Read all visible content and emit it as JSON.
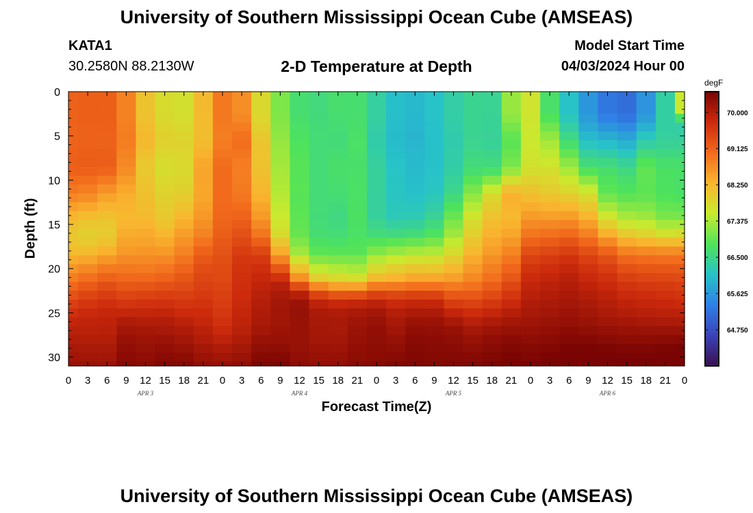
{
  "header": {
    "title": "University of Southern Mississippi Ocean Cube (AMSEAS)",
    "station": "KATA1",
    "coordinates": "30.2580N  88.2130W",
    "subtitle": "2-D Temperature at Depth",
    "model_start_label": "Model Start Time",
    "model_start_value": "04/03/2024 Hour 00"
  },
  "footer": {
    "title": "University of Southern Mississippi Ocean Cube (AMSEAS)"
  },
  "chart_data": {
    "type": "heatmap",
    "title": "2-D Temperature at Depth",
    "xlabel": "Forecast Time(Z)",
    "ylabel": "Depth (ft)",
    "colorbar_unit": "degF",
    "x_hours": [
      0,
      96
    ],
    "y_depth_ft": [
      0,
      31
    ],
    "y_inverted": true,
    "x_tick_labels": [
      "0",
      "3",
      "6",
      "9",
      "12",
      "15",
      "18",
      "21",
      "0",
      "3",
      "6",
      "9",
      "12",
      "15",
      "18",
      "21",
      "0",
      "3",
      "6",
      "9",
      "12",
      "15",
      "18",
      "21",
      "0",
      "3",
      "6",
      "9",
      "12",
      "15",
      "18",
      "21",
      "0"
    ],
    "date_labels": [
      {
        "label": "APR 3",
        "hour": 12
      },
      {
        "label": "APR 4",
        "hour": 36
      },
      {
        "label": "APR 5",
        "hour": 60
      },
      {
        "label": "APR 6",
        "hour": 84
      }
    ],
    "y_ticks": [
      0,
      5,
      10,
      15,
      20,
      25,
      30
    ],
    "colorbar": {
      "min": 63.875,
      "max": 70.5,
      "tick_values": [
        70.0,
        69.125,
        68.25,
        67.375,
        66.5,
        65.625,
        64.75
      ],
      "tick_labels": [
        "70.000",
        "69.125",
        "68.250",
        "67.375",
        "66.500",
        "65.625",
        "64.750"
      ],
      "colors": [
        "#3b0f4f",
        "#3a43b8",
        "#2f7fe6",
        "#27c3c8",
        "#4fe35a",
        "#c9ea2e",
        "#f9b52f",
        "#f26a1c",
        "#cc2a0c",
        "#7a0403"
      ]
    },
    "depth_levels_ft": [
      0,
      1,
      2,
      3,
      4,
      5,
      6,
      7,
      8,
      9,
      10,
      11,
      12,
      13,
      14,
      15,
      16,
      17,
      18,
      19,
      20,
      21,
      22,
      23,
      24,
      25,
      26,
      27,
      28,
      29,
      30,
      31
    ],
    "time_hours": [
      0,
      3,
      6,
      9,
      12,
      15,
      18,
      21,
      24,
      27,
      30,
      33,
      36,
      39,
      42,
      45,
      48,
      51,
      54,
      57,
      60,
      63,
      66,
      69,
      72,
      75,
      78,
      81,
      84,
      87,
      90,
      93,
      96
    ],
    "values_degF": [
      [
        69.12,
        69.15,
        69.16,
        68.79,
        68.11,
        67.77,
        67.71,
        68.22,
        68.89,
        68.67,
        67.81,
        67.1,
        66.67,
        66.59,
        66.69,
        66.68,
        66.36,
        66.04,
        65.98,
        66.08,
        66.32,
        66.46,
        66.44,
        67.26,
        67.64,
        66.72,
        66.09,
        65.6,
        65.25,
        65.14,
        65.57,
        66.33,
        67.57
      ],
      [
        69.12,
        69.15,
        69.16,
        68.79,
        68.11,
        67.77,
        67.71,
        68.22,
        68.89,
        68.67,
        67.81,
        67.1,
        66.67,
        66.59,
        66.69,
        66.68,
        66.36,
        66.04,
        65.98,
        66.08,
        66.32,
        66.46,
        66.44,
        67.26,
        67.64,
        66.72,
        66.09,
        65.6,
        65.25,
        65.14,
        65.57,
        66.33,
        67.57
      ],
      [
        69.12,
        69.15,
        69.16,
        68.79,
        68.11,
        67.77,
        67.71,
        68.22,
        68.89,
        68.67,
        67.81,
        67.1,
        66.67,
        66.59,
        66.69,
        66.68,
        66.36,
        66.04,
        65.98,
        66.08,
        66.32,
        66.46,
        66.44,
        67.26,
        67.64,
        66.72,
        66.09,
        65.6,
        65.25,
        65.14,
        65.57,
        66.33,
        67.57
      ],
      [
        69.12,
        69.15,
        69.15,
        68.8,
        68.14,
        67.8,
        67.74,
        68.21,
        68.88,
        68.73,
        67.84,
        67.13,
        66.7,
        66.6,
        66.67,
        66.69,
        66.35,
        66.03,
        65.96,
        66.08,
        66.31,
        66.46,
        66.43,
        67.19,
        67.62,
        66.82,
        66.17,
        65.67,
        65.37,
        65.25,
        65.67,
        66.33,
        66.73
      ],
      [
        69.11,
        69.13,
        69.14,
        68.82,
        68.19,
        67.86,
        67.8,
        68.2,
        68.86,
        68.85,
        67.92,
        67.17,
        66.74,
        66.62,
        66.65,
        66.71,
        66.32,
        66.02,
        65.95,
        66.07,
        66.29,
        66.46,
        66.42,
        67.06,
        67.59,
        67.02,
        66.33,
        65.8,
        65.6,
        65.48,
        65.89,
        66.33,
        66.32
      ],
      [
        69.1,
        69.12,
        69.12,
        68.84,
        68.23,
        67.91,
        67.86,
        68.19,
        68.84,
        68.95,
        68.01,
        67.22,
        66.77,
        66.63,
        66.62,
        66.73,
        66.29,
        66.01,
        65.93,
        66.07,
        66.27,
        66.45,
        66.41,
        66.94,
        67.58,
        67.22,
        66.51,
        65.96,
        65.83,
        65.71,
        66.13,
        66.37,
        66.35
      ],
      [
        69.11,
        69.13,
        69.12,
        68.83,
        68.22,
        67.9,
        67.87,
        68.22,
        68.86,
        68.98,
        68.08,
        67.26,
        66.8,
        66.63,
        66.62,
        66.74,
        66.29,
        66.02,
        65.94,
        66.07,
        66.27,
        66.47,
        66.42,
        66.9,
        67.59,
        67.38,
        66.72,
        66.15,
        66.06,
        65.93,
        66.36,
        66.43,
        66.43
      ],
      [
        69.13,
        69.16,
        69.15,
        68.78,
        68.14,
        67.83,
        67.84,
        68.32,
        68.92,
        68.92,
        68.1,
        67.29,
        66.83,
        66.63,
        66.66,
        66.72,
        66.33,
        66.05,
        65.97,
        66.07,
        66.29,
        66.53,
        66.5,
        66.97,
        67.62,
        67.49,
        66.95,
        66.37,
        66.3,
        66.16,
        66.59,
        66.55,
        66.55
      ],
      [
        69.15,
        69.18,
        69.17,
        68.73,
        68.06,
        67.76,
        67.81,
        68.41,
        68.98,
        68.85,
        68.12,
        67.32,
        66.86,
        66.63,
        66.7,
        66.71,
        66.37,
        66.08,
        65.99,
        66.07,
        66.3,
        66.59,
        66.57,
        67.05,
        67.65,
        67.61,
        67.18,
        66.58,
        66.54,
        66.39,
        66.82,
        66.68,
        66.67
      ],
      [
        69.12,
        69.13,
        69.08,
        68.66,
        68.04,
        67.75,
        67.8,
        68.45,
        69.02,
        68.83,
        68.15,
        67.35,
        66.87,
        66.63,
        66.71,
        66.72,
        66.39,
        66.1,
        66.0,
        66.08,
        66.33,
        66.68,
        66.74,
        67.27,
        67.73,
        67.73,
        67.39,
        66.85,
        66.71,
        66.58,
        66.93,
        66.76,
        66.73
      ],
      [
        69.01,
        68.99,
        68.87,
        68.55,
        68.08,
        67.81,
        67.85,
        68.44,
        69.02,
        68.85,
        68.2,
        67.38,
        66.87,
        66.63,
        66.69,
        66.73,
        66.39,
        66.11,
        66.02,
        66.1,
        66.4,
        66.87,
        67.14,
        67.71,
        67.89,
        67.84,
        67.59,
        67.19,
        66.8,
        66.69,
        66.91,
        66.77,
        66.72
      ],
      [
        68.9,
        68.84,
        68.65,
        68.43,
        68.12,
        67.86,
        67.91,
        68.43,
        69.02,
        68.87,
        68.25,
        67.41,
        66.88,
        66.63,
        66.67,
        66.74,
        66.39,
        66.12,
        66.04,
        66.12,
        66.47,
        67.06,
        67.54,
        68.14,
        68.05,
        67.96,
        67.78,
        67.53,
        66.88,
        66.79,
        66.9,
        66.78,
        66.72
      ],
      [
        68.73,
        68.66,
        68.46,
        68.34,
        68.15,
        67.91,
        68.0,
        68.45,
        69.03,
        68.92,
        68.33,
        67.45,
        66.87,
        66.63,
        66.64,
        66.74,
        66.38,
        66.14,
        66.09,
        66.19,
        66.61,
        67.25,
        67.83,
        68.33,
        68.21,
        68.12,
        68.01,
        67.81,
        67.06,
        66.93,
        66.96,
        66.83,
        66.79
      ],
      [
        68.51,
        68.43,
        68.3,
        68.3,
        68.19,
        67.97,
        68.12,
        68.51,
        69.05,
        69.01,
        68.44,
        67.51,
        66.88,
        66.63,
        66.6,
        66.75,
        66.38,
        66.17,
        66.16,
        66.3,
        66.79,
        67.44,
        67.97,
        68.29,
        68.37,
        68.31,
        68.27,
        68.04,
        67.34,
        67.13,
        67.11,
        66.95,
        66.92
      ],
      [
        68.3,
        68.21,
        68.15,
        68.26,
        68.22,
        68.02,
        68.24,
        68.57,
        69.07,
        69.1,
        68.55,
        67.56,
        66.9,
        66.62,
        66.56,
        66.76,
        66.38,
        66.2,
        66.22,
        66.41,
        66.96,
        67.63,
        68.1,
        68.25,
        68.54,
        68.5,
        68.52,
        68.27,
        67.61,
        67.33,
        67.27,
        67.07,
        67.06
      ],
      [
        68.16,
        68.06,
        68.06,
        68.29,
        68.29,
        68.12,
        68.37,
        68.66,
        69.11,
        69.2,
        68.71,
        67.64,
        66.92,
        66.63,
        66.58,
        66.75,
        66.48,
        66.36,
        66.39,
        66.58,
        67.13,
        67.79,
        68.21,
        68.32,
        68.71,
        68.73,
        68.77,
        68.53,
        67.95,
        67.62,
        67.53,
        67.34,
        67.36
      ],
      [
        68.05,
        67.95,
        68.0,
        68.37,
        68.39,
        68.26,
        68.51,
        68.78,
        69.16,
        69.31,
        68.9,
        67.77,
        66.97,
        66.66,
        66.63,
        66.74,
        66.61,
        66.56,
        66.61,
        66.77,
        67.29,
        67.92,
        68.31,
        68.43,
        68.9,
        68.96,
        69.03,
        68.8,
        68.33,
        67.98,
        67.86,
        67.7,
        67.73
      ],
      [
        68.08,
        68.03,
        68.13,
        68.46,
        68.48,
        68.4,
        68.64,
        68.94,
        69.22,
        69.42,
        69.16,
        68.05,
        67.11,
        66.76,
        66.73,
        66.8,
        66.85,
        66.89,
        66.96,
        67.07,
        67.51,
        68.08,
        68.42,
        68.58,
        69.11,
        69.19,
        69.28,
        69.07,
        68.72,
        68.39,
        68.28,
        68.19,
        68.2
      ],
      [
        68.19,
        68.2,
        68.33,
        68.56,
        68.59,
        68.55,
        68.77,
        69.11,
        69.28,
        69.53,
        69.42,
        68.37,
        67.29,
        66.88,
        66.86,
        66.87,
        67.11,
        67.24,
        67.33,
        67.39,
        67.73,
        68.23,
        68.53,
        68.74,
        69.33,
        69.41,
        69.51,
        69.33,
        69.1,
        68.78,
        68.71,
        68.67,
        68.68
      ],
      [
        68.38,
        68.45,
        68.6,
        68.72,
        68.72,
        68.73,
        68.93,
        69.25,
        69.34,
        69.61,
        69.6,
        68.78,
        67.66,
        67.16,
        67.11,
        67.09,
        67.44,
        67.59,
        67.69,
        67.72,
        67.99,
        68.4,
        68.67,
        68.91,
        69.51,
        69.59,
        69.69,
        69.52,
        69.35,
        69.08,
        69.02,
        68.99,
        68.99
      ],
      [
        68.6,
        68.71,
        68.87,
        68.88,
        68.86,
        68.92,
        69.09,
        69.36,
        69.38,
        69.66,
        69.72,
        69.25,
        68.12,
        67.51,
        67.41,
        67.35,
        67.79,
        67.94,
        68.05,
        68.06,
        68.25,
        68.56,
        68.82,
        69.08,
        69.65,
        69.73,
        69.83,
        69.67,
        69.54,
        69.32,
        69.26,
        69.24,
        69.22
      ],
      [
        68.82,
        68.96,
        69.11,
        69.05,
        69.04,
        69.1,
        69.24,
        69.43,
        69.41,
        69.69,
        69.81,
        69.68,
        68.63,
        67.93,
        67.77,
        67.71,
        68.19,
        68.29,
        68.41,
        68.41,
        68.5,
        68.72,
        68.96,
        69.25,
        69.77,
        69.84,
        69.93,
        69.79,
        69.68,
        69.5,
        69.44,
        69.42,
        69.39
      ],
      [
        69.07,
        69.21,
        69.35,
        69.24,
        69.26,
        69.31,
        69.37,
        69.51,
        69.46,
        69.72,
        69.88,
        69.96,
        69.35,
        68.72,
        68.5,
        68.48,
        68.86,
        68.88,
        68.97,
        68.96,
        68.87,
        68.97,
        69.17,
        69.44,
        69.86,
        69.93,
        70.01,
        69.89,
        69.8,
        69.66,
        69.6,
        69.57,
        69.53
      ],
      [
        69.3,
        69.44,
        69.55,
        69.44,
        69.48,
        69.52,
        69.5,
        69.58,
        69.5,
        69.75,
        69.94,
        70.08,
        69.96,
        69.47,
        69.28,
        69.3,
        69.5,
        69.43,
        69.49,
        69.47,
        69.23,
        69.23,
        69.38,
        69.61,
        69.94,
        70.01,
        70.07,
        69.99,
        69.89,
        69.79,
        69.73,
        69.69,
        69.65
      ],
      [
        69.52,
        69.63,
        69.71,
        69.64,
        69.68,
        69.7,
        69.63,
        69.66,
        69.55,
        69.79,
        69.99,
        70.13,
        70.2,
        69.9,
        69.81,
        69.85,
        69.92,
        69.79,
        69.85,
        69.84,
        69.56,
        69.49,
        69.62,
        69.79,
        70.02,
        70.08,
        70.14,
        70.07,
        69.98,
        69.89,
        69.84,
        69.81,
        69.77
      ],
      [
        69.71,
        69.78,
        69.83,
        69.84,
        69.85,
        69.86,
        69.77,
        69.75,
        69.6,
        69.84,
        70.03,
        70.15,
        70.25,
        70.06,
        70.02,
        70.08,
        70.13,
        69.98,
        70.06,
        70.06,
        69.86,
        69.74,
        69.84,
        69.96,
        70.09,
        70.14,
        70.2,
        70.14,
        70.06,
        70.0,
        69.95,
        69.92,
        69.9
      ],
      [
        69.84,
        69.87,
        69.89,
        70.02,
        69.99,
        70.0,
        69.91,
        69.84,
        69.68,
        69.88,
        70.07,
        70.16,
        70.23,
        70.1,
        70.09,
        70.17,
        70.23,
        70.09,
        70.2,
        70.2,
        70.09,
        69.95,
        70.03,
        70.11,
        70.17,
        70.21,
        70.26,
        70.21,
        70.15,
        70.11,
        70.07,
        70.05,
        70.04
      ],
      [
        69.93,
        69.92,
        69.93,
        70.15,
        70.11,
        70.1,
        70.03,
        69.93,
        69.78,
        69.94,
        70.13,
        70.19,
        70.22,
        70.11,
        70.1,
        70.21,
        70.28,
        70.17,
        70.3,
        70.29,
        70.24,
        70.12,
        70.19,
        70.25,
        70.24,
        70.28,
        70.34,
        70.31,
        70.26,
        70.22,
        70.21,
        70.21,
        70.21
      ],
      [
        70.01,
        69.99,
        69.99,
        70.24,
        70.19,
        70.2,
        70.13,
        70.01,
        69.9,
        70.02,
        70.22,
        70.24,
        70.23,
        70.14,
        70.13,
        70.24,
        70.31,
        70.25,
        70.36,
        70.34,
        70.31,
        70.23,
        70.3,
        70.36,
        70.32,
        70.35,
        70.41,
        70.41,
        70.37,
        70.33,
        70.33,
        70.35,
        70.37
      ],
      [
        70.09,
        70.07,
        70.07,
        70.3,
        70.25,
        70.28,
        70.23,
        70.11,
        70.03,
        70.12,
        70.31,
        70.32,
        70.25,
        70.19,
        70.18,
        70.28,
        70.33,
        70.31,
        70.39,
        70.37,
        70.36,
        70.31,
        70.37,
        70.43,
        70.39,
        70.42,
        70.48,
        70.49,
        70.47,
        70.44,
        70.44,
        70.47,
        70.5
      ],
      [
        70.17,
        70.15,
        70.14,
        70.34,
        70.3,
        70.36,
        70.32,
        70.2,
        70.15,
        70.21,
        70.39,
        70.4,
        70.29,
        70.24,
        70.24,
        70.32,
        70.35,
        70.37,
        70.42,
        70.39,
        70.4,
        70.38,
        70.43,
        70.48,
        70.45,
        70.49,
        70.54,
        70.56,
        70.56,
        70.53,
        70.54,
        70.57,
        70.6
      ],
      [
        70.24,
        70.22,
        70.21,
        70.39,
        70.35,
        70.43,
        70.41,
        70.29,
        70.26,
        70.3,
        70.47,
        70.47,
        70.33,
        70.29,
        70.29,
        70.36,
        70.38,
        70.43,
        70.45,
        70.41,
        70.44,
        70.45,
        70.49,
        70.53,
        70.51,
        70.55,
        70.6,
        70.63,
        70.65,
        70.62,
        70.64,
        70.67,
        70.7
      ]
    ]
  }
}
